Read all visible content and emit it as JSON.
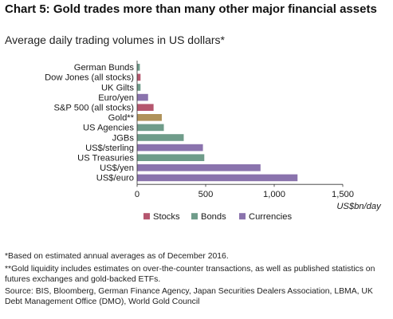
{
  "header": {
    "title": "Chart 5: Gold trades more than many other major financial assets",
    "subtitle": "Average daily trading volumes in US dollars*"
  },
  "footnotes": {
    "note1": "*Based on estimated annual averages as of December 2016.",
    "note2": "**Gold liquidity includes estimates on over-the-counter transactions, as well as published statistics on futures exchanges and gold-backed ETFs.",
    "source": "Source: BIS, Bloomberg, German Finance Agency, Japan Securities Dealers Association, LBMA, UK Debt Management Office (DMO), World Gold Council"
  },
  "chart_data": {
    "type": "bar",
    "orientation": "horizontal",
    "title": "Chart 5: Gold trades more than many other major financial assets",
    "subtitle": "Average daily trading volumes in US dollars*",
    "xlabel": "US$bn/day",
    "xlim": [
      0,
      1500
    ],
    "xticks": [
      0,
      500,
      1000,
      1500
    ],
    "xtick_labels": [
      "0",
      "500",
      "1,000",
      "1,500"
    ],
    "grid": false,
    "legend_position": "bottom",
    "legend": [
      {
        "name": "Stocks",
        "color": "#b5566e"
      },
      {
        "name": "Bonds",
        "color": "#6f9c8a"
      },
      {
        "name": "Currencies",
        "color": "#8a73ad"
      }
    ],
    "gold_color": "#b0925a",
    "bars": [
      {
        "label": "German Bunds",
        "value": 20,
        "group": "Bonds"
      },
      {
        "label": "Dow Jones (all stocks)",
        "value": 25,
        "group": "Stocks"
      },
      {
        "label": "UK Gilts",
        "value": 25,
        "group": "Bonds"
      },
      {
        "label": "Euro/yen",
        "value": 80,
        "group": "Currencies"
      },
      {
        "label": "S&P 500 (all stocks)",
        "value": 120,
        "group": "Stocks"
      },
      {
        "label": "Gold**",
        "value": 180,
        "group": "Gold"
      },
      {
        "label": "US Agencies",
        "value": 195,
        "group": "Bonds"
      },
      {
        "label": "JGBs",
        "value": 340,
        "group": "Bonds"
      },
      {
        "label": "US$/sterling",
        "value": 480,
        "group": "Currencies"
      },
      {
        "label": "US Treasuries",
        "value": 490,
        "group": "Bonds"
      },
      {
        "label": "US$/yen",
        "value": 900,
        "group": "Currencies"
      },
      {
        "label": "US$/euro",
        "value": 1170,
        "group": "Currencies"
      }
    ]
  }
}
